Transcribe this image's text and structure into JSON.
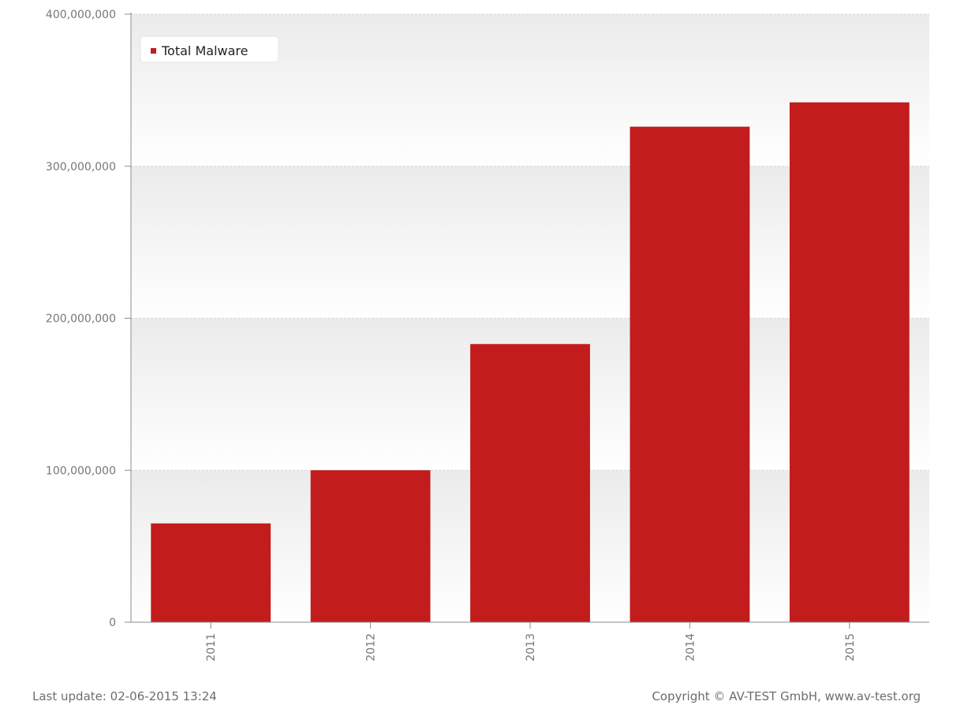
{
  "chart_data": {
    "type": "bar",
    "categories": [
      "2011",
      "2012",
      "2013",
      "2014",
      "2015"
    ],
    "series": [
      {
        "name": "Total Malware",
        "values": [
          65000000,
          100000000,
          183000000,
          326000000,
          342000000
        ]
      }
    ],
    "ylim": [
      0,
      400000000
    ],
    "yticks": [
      "0",
      "100,000,000",
      "200,000,000",
      "300,000,000",
      "400,000,000"
    ],
    "grid": true,
    "legend_position": "top-left",
    "colors": {
      "bar": "#c21c1c",
      "grid": "#d9d9d9",
      "axis": "#8c8c8c"
    }
  },
  "footer": {
    "last_update": "Last update: 02-06-2015 13:24",
    "copyright": "Copyright © AV-TEST GmbH, www.av-test.org"
  }
}
